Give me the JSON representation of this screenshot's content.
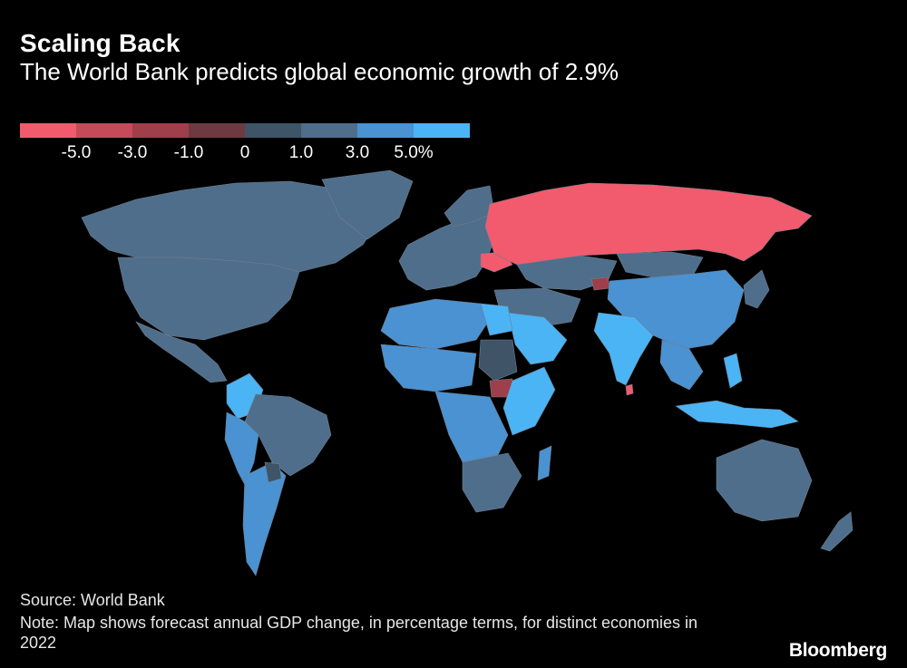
{
  "header": {
    "title": "Scaling Back",
    "subtitle": "The World Bank predicts global economic growth of 2.9%"
  },
  "legend": {
    "colors": [
      "#f25b6d",
      "#c54a5a",
      "#9e3f4b",
      "#6e3a42",
      "#3f5467",
      "#4f6e8c",
      "#4a92d2",
      "#4bb4f5"
    ],
    "ticks": [
      "-5.0",
      "-3.0",
      "-1.0",
      "0",
      "1.0",
      "3.0",
      "5.0%"
    ]
  },
  "footer": {
    "source": "Source: World Bank",
    "note": "Note: Map shows forecast annual GDP change, in percentage terms, for distinct economies in 2022",
    "brand": "Bloomberg"
  },
  "map": {
    "regions": [
      {
        "name": "Russia",
        "growth_bin": "-5.0"
      },
      {
        "name": "Ukraine",
        "growth_bin": "-5.0"
      },
      {
        "name": "Kyrgyzstan",
        "growth_bin": "-3.0"
      },
      {
        "name": "Sri Lanka",
        "growth_bin": "-5.0"
      },
      {
        "name": "South Sudan",
        "growth_bin": "-1.0"
      },
      {
        "name": "Sudan",
        "growth_bin": "1.0"
      },
      {
        "name": "Paraguay",
        "growth_bin": "1.0"
      },
      {
        "name": "India",
        "growth_bin": "5.0%"
      },
      {
        "name": "Colombia",
        "growth_bin": "5.0%"
      },
      {
        "name": "Saudi Arabia",
        "growth_bin": "5.0%"
      },
      {
        "name": "Egypt",
        "growth_bin": "5.0%"
      },
      {
        "name": "Philippines",
        "growth_bin": "5.0%"
      },
      {
        "name": "Indonesia",
        "growth_bin": "5.0%"
      },
      {
        "name": "China",
        "growth_bin": "3.0"
      },
      {
        "name": "United States",
        "growth_bin": "1.0"
      },
      {
        "name": "Canada",
        "growth_bin": "1.0"
      },
      {
        "name": "Brazil",
        "growth_bin": "1.0"
      },
      {
        "name": "Australia",
        "growth_bin": "1.0"
      },
      {
        "name": "Europe",
        "growth_bin": "1.0"
      }
    ],
    "no_data_color": "#111111"
  }
}
